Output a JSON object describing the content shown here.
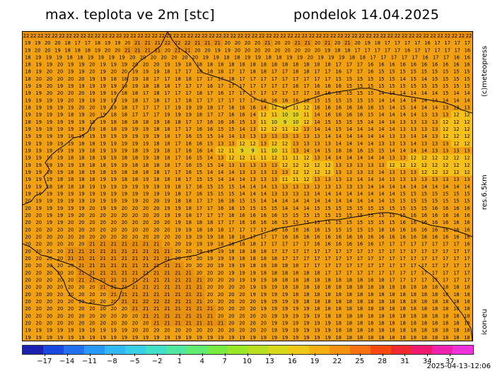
{
  "header": {
    "title": "max. teplota ve 2m [stc]",
    "date": "pondelok 14.04.2025"
  },
  "side_labels": {
    "copyright": "(c)meteopress",
    "resolution": "res.6.5km",
    "model": "icon-eu"
  },
  "footer": {
    "timestamp": "2025-04-13-12:06"
  },
  "map": {
    "base_color": "#f0a010",
    "warm_color": "#e89010",
    "cool_color": "#f6c018",
    "cold_color": "#e2d020",
    "value_grid": [
      "22 22 22 22 22 22 22 22 22 22 22 22 22 22 22 22 22 22 22 22 22 22 22 22 22 22 22 22 22 22 22 22 22 22 22 22 22 22 22 22 22 22 22 22 22 22 22 22 22 22 22 22 22 22 22 22 22 22 22 22 22 22 22",
      "19 19 20 20 18 17 17 18 19 19 20 21 21 21 22 22 22 21 21 21 20 20 20 20 21 20 20 21 21 20 21 20 21 20 19 18 17 17 17 17 16 17 17 17 17",
      "19 20 20 19 18 18 18 19 20 20 21 21 21 21 20 21 21 20 20 19 19 20 20 20 20 20 20 20 20 20 19 18 18 17 17 17 17 17 16 17 17 17 17 17 16",
      "18 19 19 19 18 18 19 19 19 19 20 20 20 20 20 20 20 19 19 18 18 19 19 18 18 19 19 20 19 19 19 18 18 17 17 17 17 17 16 17 17 16 16",
      "18 19 19 20 19 19 20 19 19 19 20 20 20 19 19 18 18 18 18 18 18 18 18 18 18 18 18 18 18 17 17 17 16 16 16 16 16 16 16 16 16 16",
      "18 19 20 20 19 19 20 19 20 20 19 19 19 18 17 17 18 18 18 17 17 18 18 17 17 18 18 17 17 16 17 17 16 15 15 15 15 15 15 15 15 15",
      "18 20 20 20 20 20 19 19 18 18 19 18 17 17 18 18 17 17 17 18 17 17 17 17 17 17 17 17 17 15 15 15 15 15 15 14 15 14 15 15 15 15",
      "19 19 20 19 19 19 19 19 19 19 19 18 18 18 17 17 17 16 17 17 17 17 17 17 17 16 17 16 16 16 15 15 15 15 15 15 15 15 15 15 15 15",
      "19 19 20 20 20 20 19 19 19 18 18 17 18 17 17 17 18 17 16 17 17 17 17 17 17 17 17 16 16 16 15 15 15 14 14 14 14 14 14 15 14 14",
      "19 19 19 19 20 19 19 19 19 19 18 17 18 17 17 18 17 17 17 17 17 17 16 16 16 16 16 15 15 15 15 15 15 14 14 14 14 14 14 14 14 14",
      "18 19 19 19 19 20 20 19 19 18 17 17 17 17 19 19 19 18 17 16 16 16 14 12 12 11 12 16 16 16 16 16 16 15 14 15 14 14 14 13 13 13",
      "19 19 19 19 18 19 20 19 18 18 17 17 17 19 19 19 18 17 17 16 16 14 12 11 10 10 11 14 16 16 16 16 15 14 14 14 14 13 13 13 12 12",
      "18 19 19 19 19 19 19 19 18 18 18 18 19 18 18 17 17 16 16 16 15 13 11 10 9 10 12 14 15 15 15 15 14 14 14 13 13 13 13 12 12 12",
      "19 19 19 19 19 19 19 18 18 19 19 19 18 18 17 17 16 16 15 15 14 13 12 12 11 12 13 14 14 15 14 14 14 14 14 13 13 13 13 12 12 12",
      "19 19 19 19 18 19 19 19 19 19 19 19 19 18 17 16 15 15 14 14 13 13 13 13 13 13 13 13 14 14 14 14 14 14 13 13 14 14 13 12 12 12",
      "19 19 19 19 19 18 18 19 19 19 19 19 18 18 17 16 16 15 13 13 12 12 13 12 12 13 13 13 13 14 14 14 14 13 13 13 14 13 13 13 12 12",
      "19 19 19 19 19 19 18 19 19 19 18 19 19 18 17 16 16 14 12 11 9 9 11 10 11 13 14 14 15 16 16 16 15 15 14 14 14 14 13 13 13 13",
      "19 19 19 19 18 18 18 19 19 18 18 19 18 18 17 16 15 14 13 12 12 11 11 12 11 11 12 13 14 14 14 14 14 14 13 13 12 12 12 12 12 12",
      "19 19 19 19 19 19 18 18 19 19 18 18 18 18 17 16 15 15 14 13 13 13 13 13 12 12 12 12 12 13 13 13 13 13 12 12 12 12 12 12 12 12",
      "19 19 19 19 18 18 19 18 19 18 18 18 18 17 17 16 15 14 14 14 13 13 13 13 13 12 12 12 12 13 13 13 13 14 13 13 13 12 12 12 12 12",
      "19 19 19 18 18 18 18 19 19 18 18 19 18 18 18 17 15 15 14 14 14 13 13 13 11 11 12 13 13 13 13 14 14 14 13 13 13 13 13 13 13 13",
      "19 19 18 18 18 18 19 19 19 19 19 19 19 19 18 17 16 15 15 15 14 14 14 13 13 13 13 13 13 13 13 13 14 14 14 14 14 14 14 14 14 14",
      "19 19 19 19 19 19 19 19 19 19 19 19 19 19 18 17 16 15 15 15 14 14 14 13 13 13 13 14 14 14 14 14 14 14 14 15 15 15 15 15 15 15",
      "20 19 19 19 19 19 19 19 19 19 19 20 20 19 18 18 17 17 16 16 15 15 14 14 14 14 14 14 14 14 14 14 14 14 15 15 15 15 15 15 15 15",
      "20 19 19 19 19 19 20 19 19 20 20 20 20 19 19 18 17 17 16 16 15 15 15 15 14 14 14 15 15 15 15 15 15 15 15 15 15 15 16 16 16 16",
      "20 20 19 19 19 20 20 20 20 20 20 20 20 19 19 18 17 17 17 16 16 16 16 16 15 15 15 15 15 15 15 15 15 15 15 15 16 16 16 16 16 16",
      "20 20 19 19 20 20 20 20 20 20 20 20 20 20 19 18 18 18 17 17 16 16 16 16 15 15 15 15 15 15 15 15 15 15 15 16 16 16 16 16 16 16",
      "20 20 20 20 20 20 20 20 20 20 20 20 20 20 19 19 18 18 18 17 17 17 17 16 16 16 16 16 15 15 15 15 15 16 16 16 16 16 16 16 16 16",
      "20 20 20 20 20 20 20 20 20 20 20 20 20 20 20 19 19 19 18 18 18 17 17 17 16 16 16 16 16 16 16 16 16 16 16 16 16 16 16 16 16 16",
      "20 20 20 20 20 20 21 21 21 21 21 21 21 20 20 19 19 19 18 18 18 18 17 17 17 17 17 16 16 16 16 16 16 17 17 17 17 17 17 17 17 16",
      "20 20 20 20 21 21 21 21 21 21 21 21 21 21 20 20 19 19 19 18 18 18 18 17 17 17 17 17 17 17 17 17 17 17 17 17 17 17 17 17 17 17",
      "20 20 20 20 21 21 21 21 21 21 21 21 21 21 20 20 20 19 19 19 18 18 18 18 17 17 17 17 17 17 17 17 17 17 17 17 17 17 17 17 17 17",
      "20 20 20 20 20 21 21 21 21 21 21 21 21 21 21 20 20 20 19 19 19 18 18 18 18 18 17 17 17 17 17 17 17 17 17 17 17 17 17 17 17 17",
      "20 20 20 20 20 21 21 21 21 21 21 21 21 21 21 21 20 20 20 19 19 19 18 18 18 18 18 18 17 17 17 17 17 17 17 17 17 17 17 17 17 17",
      "20 20 20 20 20 21 21 21 21 21 21 21 21 21 21 21 21 20 20 20 19 19 19 18 18 18 18 18 18 18 18 18 18 18 17 17 17 17 17 17 17 17",
      "20 20 20 20 20 20 20 21 21 21 21 21 21 21 21 21 21 20 20 20 20 19 19 19 18 18 18 18 18 18 18 18 18 18 18 18 18 18 18 18 18 18",
      "20 20 20 20 20 20 20 20 21 21 21 21 21 21 21 21 21 20 20 20 20 19 19 19 19 18 18 18 18 18 18 18 18 18 18 18 18 18 18 18 18 18",
      "20 20 20 20 20 20 20 20 20 21 21 22 22 22 21 21 21 20 20 20 20 20 19 19 19 19 18 18 18 18 18 18 18 18 18 18 18 18 18 18 18 18",
      "20 20 20 20 20 20 20 20 20 20 21 21 21 21 21 21 21 21 20 20 20 20 19 19 19 19 19 18 18 18 18 18 18 18 18 18 18 18 18 18 18 18",
      "20 20 20 20 20 20 20 20 20 20 20 21 21 21 21 21 21 21 20 20 20 20 20 19 19 19 19 19 18 18 18 18 18 18 18 18 18 18 18 18 18 18",
      "20 20 20 20 20 20 20 20 20 20 20 20 21 21 21 21 21 21 21 20 20 20 20 19 19 19 19 19 19 18 18 18 18 18 18 18 18 18 18 18 18 18",
      "19 19 19 19 19 19 19 19 19 19 20 20 20 20 20 20 20 20 20 20 20 20 20 19 19 19 19 19 19 18 18 18 18 18 18 18 18 18 18 18 18 18",
      "19 19 19 19 19 19 19 19 19 19 19 19 19 19 19 19 19 19 19 19 19 19 19 19 19 19 19 19 19 18 18 18 18 18 18 18 18 18 18 18 18 18"
    ]
  },
  "legend": {
    "labels": [
      "−17",
      "−14",
      "−11",
      "−8",
      "−5",
      "−2",
      "1",
      "4",
      "7",
      "10",
      "13",
      "16",
      "19",
      "22",
      "25",
      "28",
      "31",
      "34",
      "37"
    ],
    "colors": [
      "#1a20b0",
      "#1848e0",
      "#2070f0",
      "#2898f8",
      "#30b8f8",
      "#38d0e8",
      "#40e0c8",
      "#50e8a0",
      "#60ec70",
      "#78ec40",
      "#98e828",
      "#b8e020",
      "#d8d818",
      "#f0c818",
      "#f8b010",
      "#f89010",
      "#f87010",
      "#f84810",
      "#f02830",
      "#f01870",
      "#f020b0",
      "#f030d8"
    ]
  }
}
